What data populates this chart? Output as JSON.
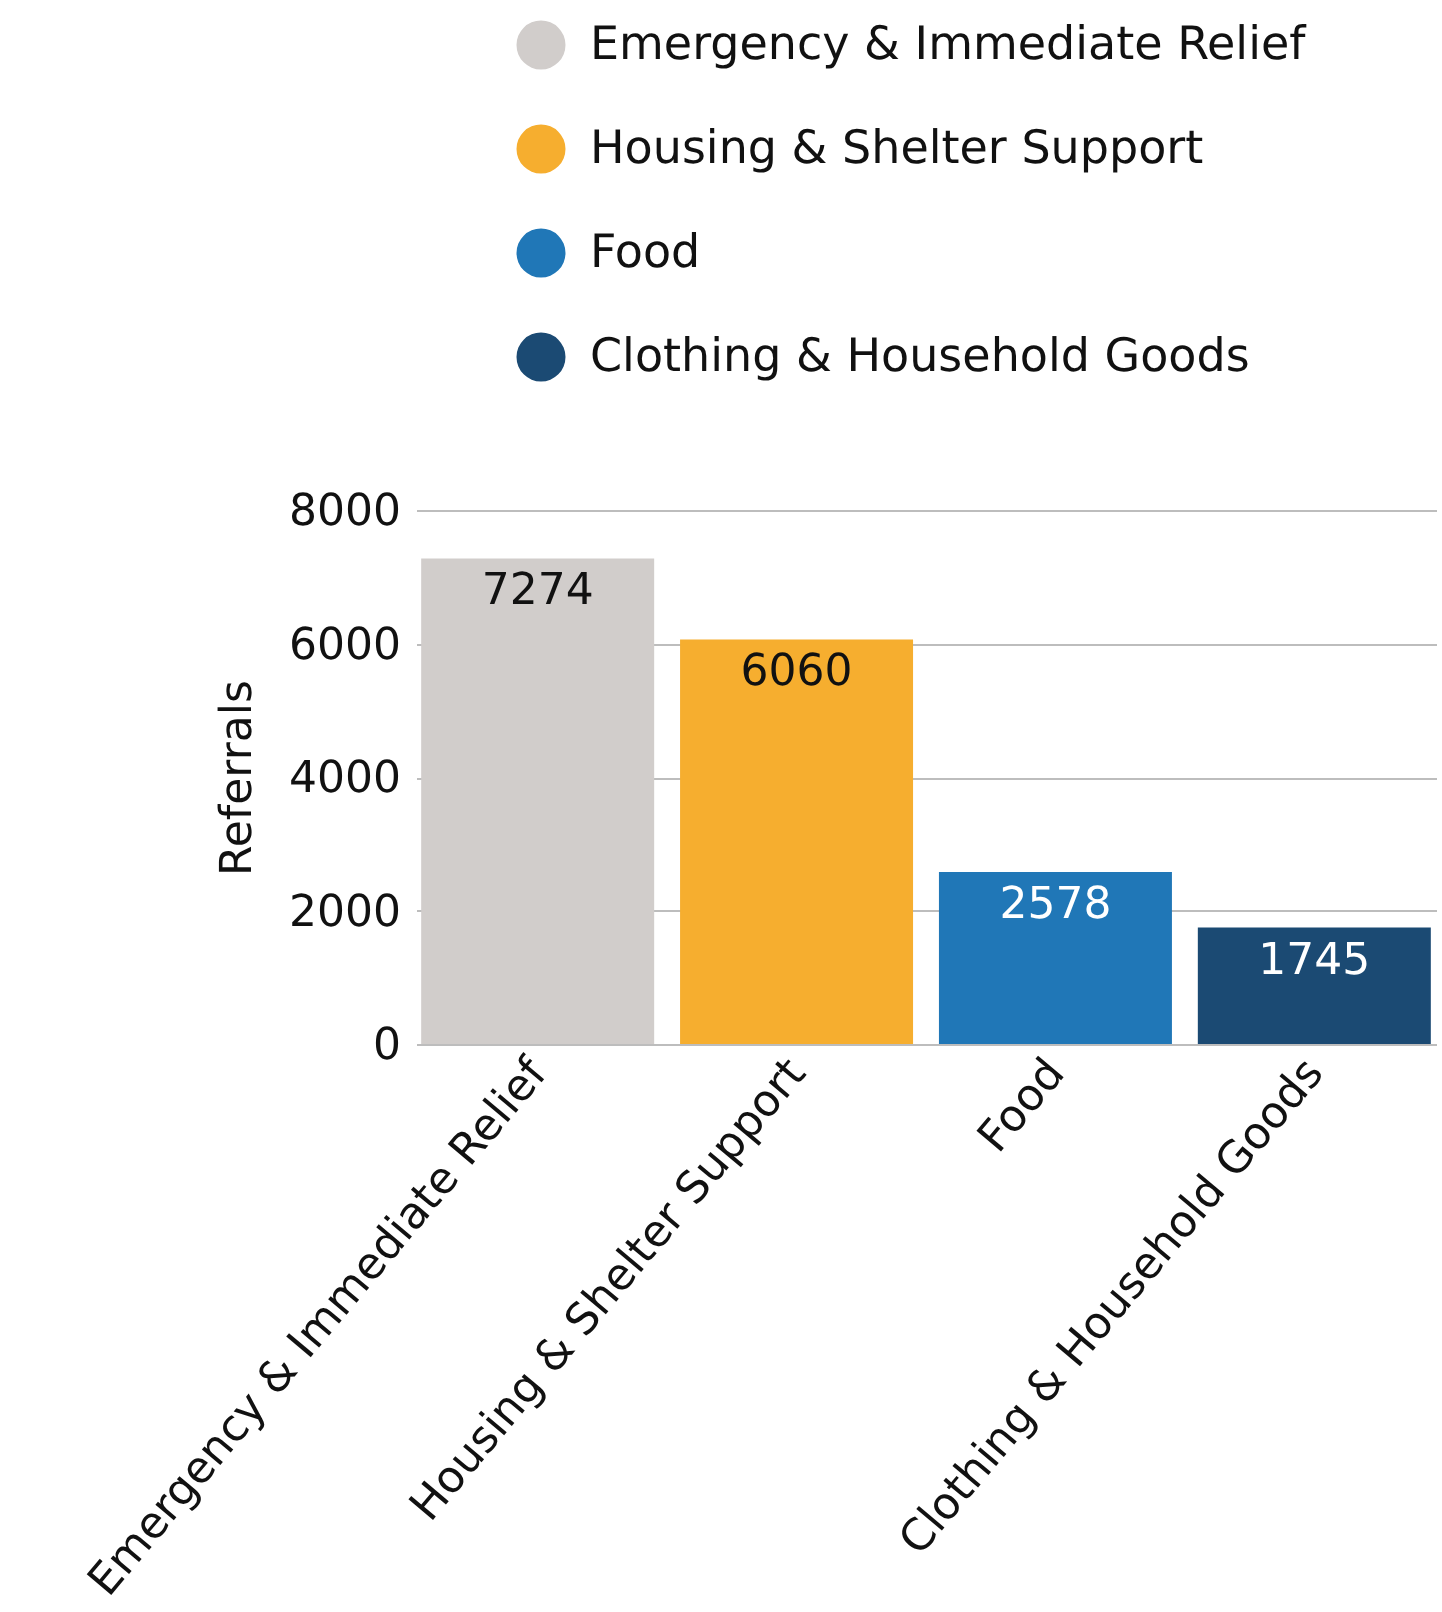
{
  "chart_data": {
    "type": "bar",
    "ylabel": "Referrals",
    "categories": [
      "Emergency & Immediate Relief",
      "Housing & Shelter Support",
      "Food",
      "Clothing & Household Goods"
    ],
    "series": [
      {
        "name": "Emergency & Immediate Relief",
        "color": "#d1cdcb",
        "values": [
          7274,
          null,
          null,
          null
        ]
      },
      {
        "name": "Housing & Shelter Support",
        "color": "#f6ae2f",
        "values": [
          null,
          6060,
          null,
          null
        ]
      },
      {
        "name": "Food",
        "color": "#2077b7",
        "values": [
          null,
          null,
          2578,
          null
        ]
      },
      {
        "name": "Clothing & Household Goods",
        "color": "#1b4a73",
        "values": [
          null,
          null,
          null,
          1745
        ]
      }
    ],
    "ylim": [
      0,
      8000
    ],
    "yticks": [
      0,
      2000,
      4000,
      6000,
      8000
    ],
    "grid": "y",
    "legend": "top",
    "data_labels": true
  }
}
